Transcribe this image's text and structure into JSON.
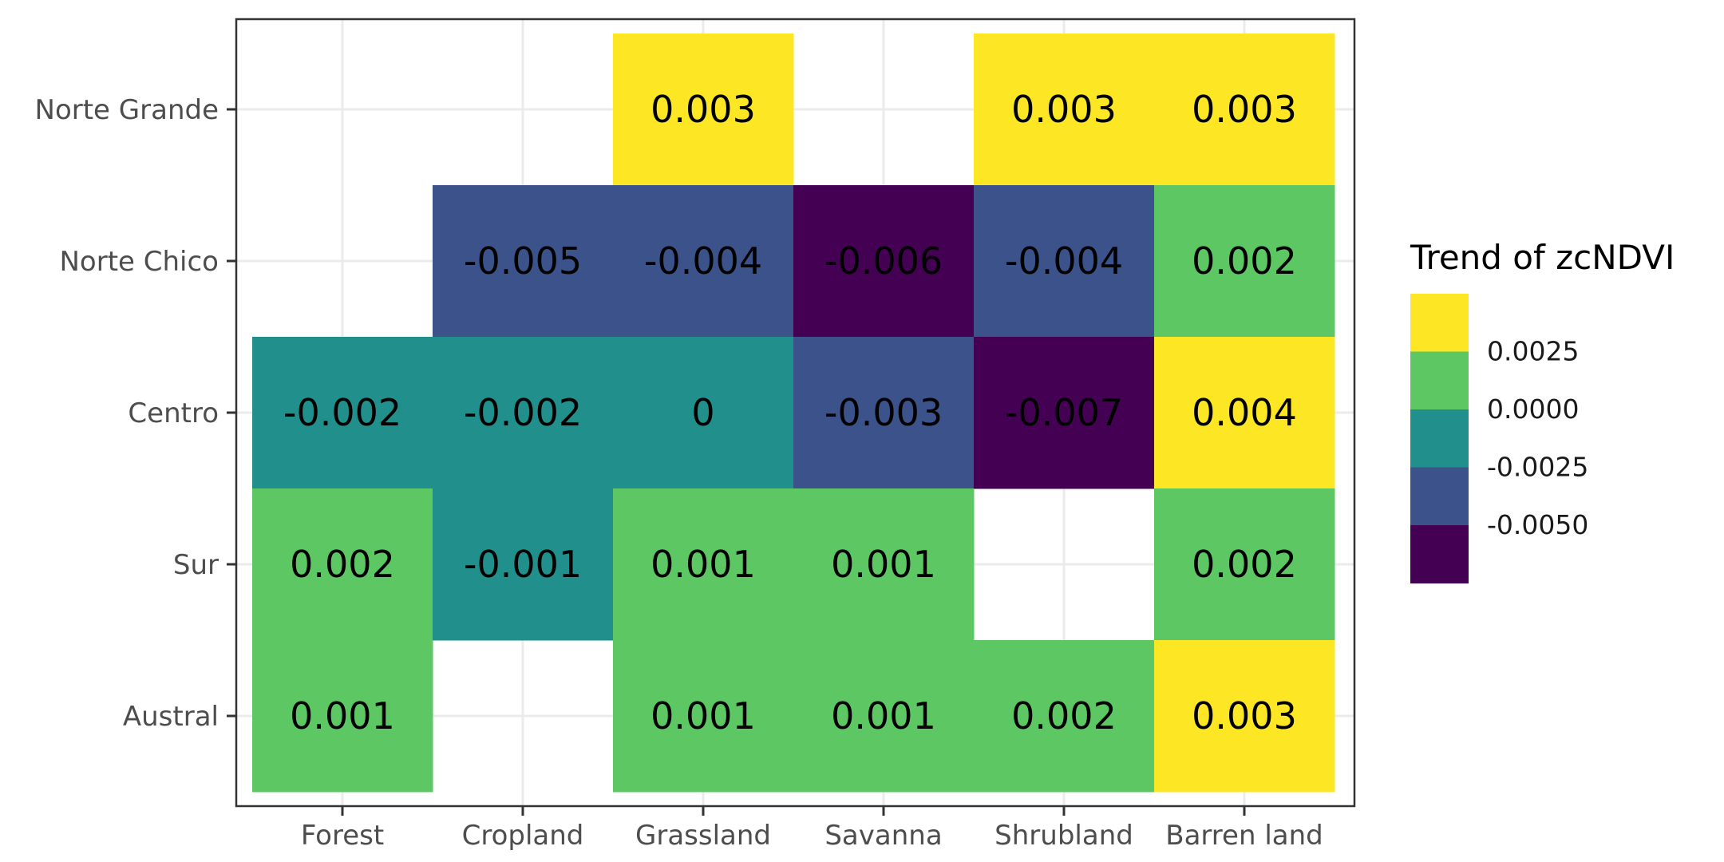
{
  "chart_data": {
    "type": "heatmap",
    "title": "",
    "xlabel": "",
    "ylabel": "",
    "x_categories": [
      "Forest",
      "Cropland",
      "Grassland",
      "Savanna",
      "Shrubland",
      "Barren land"
    ],
    "y_categories": [
      "Norte Grande",
      "Norte Chico",
      "Centro",
      "Sur",
      "Austral"
    ],
    "cells": [
      {
        "x": "Grassland",
        "y": "Norte Grande",
        "value": 0.003,
        "label": "0.003",
        "color": "#FDE725"
      },
      {
        "x": "Shrubland",
        "y": "Norte Grande",
        "value": 0.003,
        "label": "0.003",
        "color": "#FDE725"
      },
      {
        "x": "Barren land",
        "y": "Norte Grande",
        "value": 0.003,
        "label": "0.003",
        "color": "#FDE725"
      },
      {
        "x": "Cropland",
        "y": "Norte Chico",
        "value": -0.005,
        "label": "-0.005",
        "color": "#3B528B"
      },
      {
        "x": "Grassland",
        "y": "Norte Chico",
        "value": -0.004,
        "label": "-0.004",
        "color": "#3B528B"
      },
      {
        "x": "Savanna",
        "y": "Norte Chico",
        "value": -0.006,
        "label": "-0.006",
        "color": "#440154"
      },
      {
        "x": "Shrubland",
        "y": "Norte Chico",
        "value": -0.004,
        "label": "-0.004",
        "color": "#3B528B"
      },
      {
        "x": "Barren land",
        "y": "Norte Chico",
        "value": 0.002,
        "label": "0.002",
        "color": "#5DC863"
      },
      {
        "x": "Forest",
        "y": "Centro",
        "value": -0.002,
        "label": "-0.002",
        "color": "#21908C"
      },
      {
        "x": "Cropland",
        "y": "Centro",
        "value": -0.002,
        "label": "-0.002",
        "color": "#21908C"
      },
      {
        "x": "Grassland",
        "y": "Centro",
        "value": 0,
        "label": "0",
        "color": "#21908C"
      },
      {
        "x": "Savanna",
        "y": "Centro",
        "value": -0.003,
        "label": "-0.003",
        "color": "#3B528B"
      },
      {
        "x": "Shrubland",
        "y": "Centro",
        "value": -0.007,
        "label": "-0.007",
        "color": "#440154"
      },
      {
        "x": "Barren land",
        "y": "Centro",
        "value": 0.004,
        "label": "0.004",
        "color": "#FDE725"
      },
      {
        "x": "Forest",
        "y": "Sur",
        "value": 0.002,
        "label": "0.002",
        "color": "#5DC863"
      },
      {
        "x": "Cropland",
        "y": "Sur",
        "value": -0.001,
        "label": "-0.001",
        "color": "#21908C"
      },
      {
        "x": "Grassland",
        "y": "Sur",
        "value": 0.001,
        "label": "0.001",
        "color": "#5DC863"
      },
      {
        "x": "Savanna",
        "y": "Sur",
        "value": 0.001,
        "label": "0.001",
        "color": "#5DC863"
      },
      {
        "x": "Barren land",
        "y": "Sur",
        "value": 0.002,
        "label": "0.002",
        "color": "#5DC863"
      },
      {
        "x": "Forest",
        "y": "Austral",
        "value": 0.001,
        "label": "0.001",
        "color": "#5DC863"
      },
      {
        "x": "Grassland",
        "y": "Austral",
        "value": 0.001,
        "label": "0.001",
        "color": "#5DC863"
      },
      {
        "x": "Savanna",
        "y": "Austral",
        "value": 0.001,
        "label": "0.001",
        "color": "#5DC863"
      },
      {
        "x": "Shrubland",
        "y": "Austral",
        "value": 0.002,
        "label": "0.002",
        "color": "#5DC863"
      },
      {
        "x": "Barren land",
        "y": "Austral",
        "value": 0.003,
        "label": "0.003",
        "color": "#FDE725"
      }
    ],
    "legend": {
      "title": "Trend of zcNDVI",
      "placement": "right",
      "bins": [
        {
          "color": "#FDE725"
        },
        {
          "color": "#5DC863"
        },
        {
          "color": "#21908C"
        },
        {
          "color": "#3B528B"
        },
        {
          "color": "#440154"
        }
      ],
      "breaks": [
        "0.0025",
        "0.0000",
        "-0.0025",
        "-0.0050"
      ]
    },
    "grid": true
  },
  "colors": {
    "panel_border": "#333333",
    "grid": "#EBEBEB",
    "axis_text": "#4D4D4D",
    "cell_text": "#000000"
  }
}
